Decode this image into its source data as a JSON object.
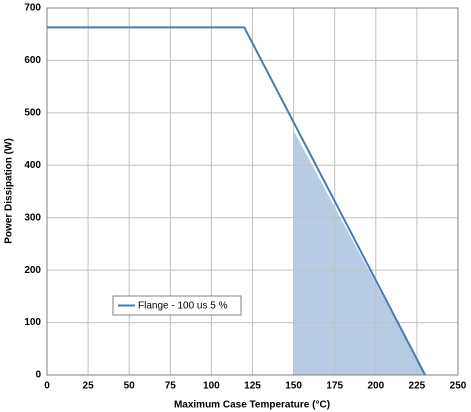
{
  "chart_data": {
    "type": "line",
    "x_label": "Maximum Case Temperature (°C)",
    "y_label": "Power Dissipation (W)",
    "xlim": [
      0,
      250
    ],
    "ylim": [
      0,
      700
    ],
    "xticks": [
      0,
      25,
      50,
      75,
      100,
      125,
      150,
      175,
      200,
      225,
      250
    ],
    "yticks": [
      0,
      100,
      200,
      300,
      400,
      500,
      600,
      700
    ],
    "grid": true,
    "legend": "lower-left",
    "series": [
      {
        "name": "Flange - 100 us 5 %",
        "color": "#4a7ab2",
        "x": [
          0,
          120,
          230
        ],
        "values": [
          663,
          663,
          0
        ]
      }
    ],
    "area": {
      "color": "#b7cce3",
      "x": [
        150,
        150,
        230
      ],
      "values": [
        0,
        466,
        0
      ]
    }
  }
}
